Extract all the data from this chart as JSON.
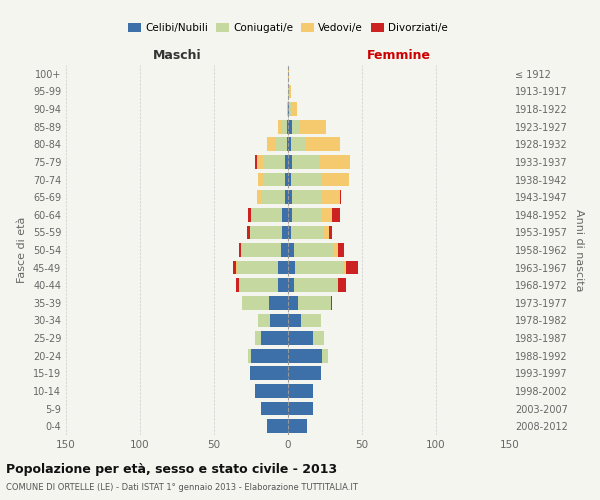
{
  "age_groups": [
    "0-4",
    "5-9",
    "10-14",
    "15-19",
    "20-24",
    "25-29",
    "30-34",
    "35-39",
    "40-44",
    "45-49",
    "50-54",
    "55-59",
    "60-64",
    "65-69",
    "70-74",
    "75-79",
    "80-84",
    "85-89",
    "90-94",
    "95-99",
    "100+"
  ],
  "birth_years": [
    "2008-2012",
    "2003-2007",
    "1998-2002",
    "1993-1997",
    "1988-1992",
    "1983-1987",
    "1978-1982",
    "1973-1977",
    "1968-1972",
    "1963-1967",
    "1958-1962",
    "1953-1957",
    "1948-1952",
    "1943-1947",
    "1938-1942",
    "1933-1937",
    "1928-1932",
    "1923-1927",
    "1918-1922",
    "1913-1917",
    "≤ 1912"
  ],
  "colors": {
    "celibi": "#3d6fa8",
    "coniugati": "#c5d8a0",
    "vedovi": "#f5c96e",
    "divorziati": "#cc2222"
  },
  "males": {
    "celibi": [
      14,
      18,
      22,
      26,
      25,
      18,
      12,
      13,
      7,
      7,
      5,
      4,
      4,
      2,
      2,
      2,
      1,
      1,
      0,
      0,
      0
    ],
    "coniugati": [
      0,
      0,
      0,
      0,
      2,
      4,
      8,
      18,
      26,
      27,
      26,
      22,
      20,
      16,
      15,
      14,
      8,
      4,
      1,
      0,
      0
    ],
    "vedovi": [
      0,
      0,
      0,
      0,
      0,
      0,
      0,
      0,
      0,
      1,
      1,
      0,
      1,
      3,
      3,
      5,
      5,
      2,
      0,
      0,
      0
    ],
    "divorziati": [
      0,
      0,
      0,
      0,
      0,
      0,
      0,
      0,
      2,
      2,
      1,
      2,
      2,
      0,
      0,
      1,
      0,
      0,
      0,
      0,
      0
    ]
  },
  "females": {
    "celibi": [
      13,
      17,
      17,
      22,
      23,
      17,
      9,
      7,
      4,
      5,
      4,
      2,
      3,
      3,
      2,
      3,
      2,
      3,
      1,
      0,
      0
    ],
    "coniugati": [
      0,
      0,
      0,
      0,
      4,
      7,
      13,
      22,
      29,
      32,
      27,
      22,
      20,
      20,
      21,
      18,
      10,
      5,
      2,
      1,
      0
    ],
    "vedovi": [
      0,
      0,
      0,
      0,
      0,
      0,
      0,
      0,
      1,
      2,
      3,
      4,
      7,
      12,
      18,
      21,
      23,
      18,
      3,
      1,
      1
    ],
    "divorziati": [
      0,
      0,
      0,
      0,
      0,
      0,
      0,
      1,
      5,
      8,
      4,
      2,
      5,
      1,
      0,
      0,
      0,
      0,
      0,
      0,
      0
    ]
  },
  "title": "Popolazione per età, sesso e stato civile - 2013",
  "subtitle": "COMUNE DI ORTELLE (LE) - Dati ISTAT 1° gennaio 2013 - Elaborazione TUTTITALIA.IT",
  "ylabel_left": "Fasce di età",
  "ylabel_right": "Anni di nascita",
  "xlabel_left": "Maschi",
  "xlabel_right": "Femmine",
  "xlim": 150,
  "background_color": "#f5f5f0",
  "legend_labels": [
    "Celibi/Nubili",
    "Coniugati/e",
    "Vedovi/e",
    "Divorziati/e"
  ]
}
